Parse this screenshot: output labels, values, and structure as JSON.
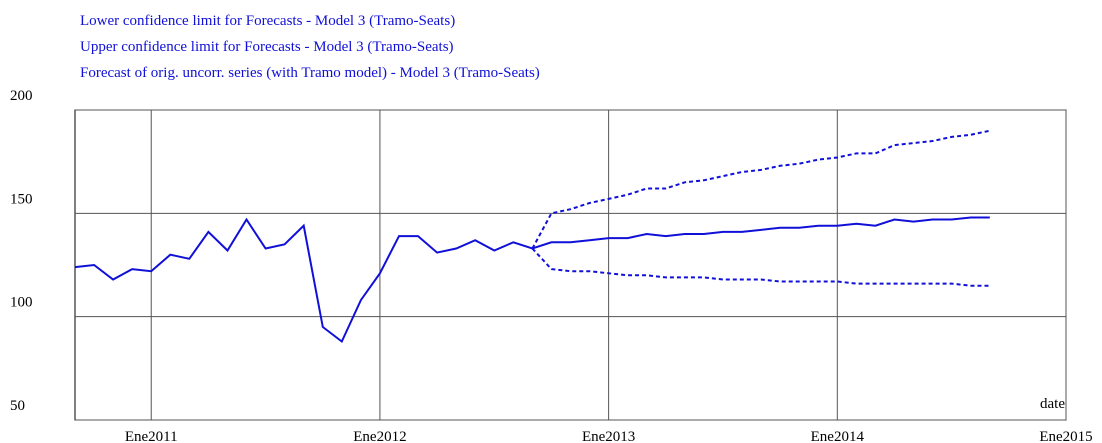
{
  "chart_data": {
    "type": "line",
    "x": [
      "2010-09",
      "2010-10",
      "2010-11",
      "2010-12",
      "2011-01",
      "2011-02",
      "2011-03",
      "2011-04",
      "2011-05",
      "2011-06",
      "2011-07",
      "2011-08",
      "2011-09",
      "2011-10",
      "2011-11",
      "2011-12",
      "2012-01",
      "2012-02",
      "2012-03",
      "2012-04",
      "2012-05",
      "2012-06",
      "2012-07",
      "2012-08",
      "2012-09",
      "2012-10",
      "2012-11",
      "2012-12",
      "2013-01",
      "2013-02",
      "2013-03",
      "2013-04",
      "2013-05",
      "2013-06",
      "2013-07",
      "2013-08",
      "2013-09",
      "2013-10",
      "2013-11",
      "2013-12",
      "2014-01",
      "2014-02",
      "2014-03",
      "2014-04",
      "2014-05",
      "2014-06",
      "2014-07",
      "2014-08",
      "2014-09"
    ],
    "series": [
      {
        "name": "Lower confidence limit for Forecasts - Model 3 (Tramo-Seats)",
        "color": "#1010d8",
        "style": "dashed",
        "values": [
          null,
          null,
          null,
          null,
          null,
          null,
          null,
          null,
          null,
          null,
          null,
          null,
          null,
          null,
          null,
          null,
          null,
          null,
          null,
          null,
          null,
          null,
          null,
          null,
          133,
          123,
          122,
          122,
          121,
          120,
          120,
          119,
          119,
          119,
          118,
          118,
          118,
          117,
          117,
          117,
          117,
          116,
          116,
          116,
          116,
          116,
          116,
          115,
          115
        ]
      },
      {
        "name": "Upper confidence limit for Forecasts - Model 3 (Tramo-Seats)",
        "color": "#1010d8",
        "style": "dashed",
        "values": [
          null,
          null,
          null,
          null,
          null,
          null,
          null,
          null,
          null,
          null,
          null,
          null,
          null,
          null,
          null,
          null,
          null,
          null,
          null,
          null,
          null,
          null,
          null,
          null,
          133,
          150,
          152,
          155,
          157,
          159,
          162,
          162,
          165,
          166,
          168,
          170,
          171,
          173,
          174,
          176,
          177,
          179,
          179,
          183,
          184,
          185,
          187,
          188,
          190
        ]
      },
      {
        "name": "Forecast of orig. uncorr. series (with Tramo model) - Model 3 (Tramo-Seats)",
        "color": "#1010d8",
        "style": "solid",
        "values": [
          124,
          125,
          118,
          123,
          122,
          130,
          128,
          141,
          132,
          147,
          133,
          135,
          144,
          95,
          88,
          108,
          121,
          139,
          139,
          131,
          133,
          137,
          132,
          136,
          133,
          136,
          136,
          137,
          138,
          138,
          140,
          139,
          140,
          140,
          141,
          141,
          142,
          143,
          143,
          144,
          144,
          145,
          144,
          147,
          146,
          147,
          147,
          148,
          148
        ]
      }
    ],
    "x_label": "date",
    "xlim": [
      "2010-09",
      "2015-01"
    ],
    "xticks": [
      {
        "value": "2011-01",
        "label": "Ene2011"
      },
      {
        "value": "2012-01",
        "label": "Ene2012"
      },
      {
        "value": "2013-01",
        "label": "Ene2013"
      },
      {
        "value": "2014-01",
        "label": "Ene2014"
      },
      {
        "value": "2015-01",
        "label": "Ene2015"
      }
    ],
    "ylim": [
      50,
      200
    ],
    "yticks": [
      50,
      100,
      150,
      200
    ],
    "grid": true
  }
}
